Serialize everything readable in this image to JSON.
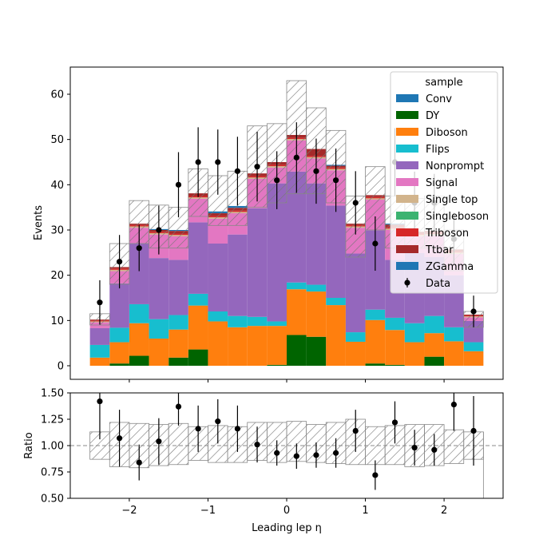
{
  "chart_data": [
    {
      "type": "bar",
      "panel": "main",
      "ylabel": "Events",
      "xlim": [
        -2.75,
        2.75
      ],
      "ylim": [
        -3,
        66
      ],
      "yticks": [
        0,
        10,
        20,
        30,
        40,
        50,
        60
      ],
      "legend_title": "sample",
      "legend_position": "top-right",
      "bin_edges": [
        -2.5,
        -2.25,
        -2.0,
        -1.75,
        -1.5,
        -1.25,
        -1.0,
        -0.75,
        -0.5,
        -0.25,
        0.0,
        0.25,
        0.5,
        0.75,
        1.0,
        1.25,
        1.5,
        1.75,
        2.0,
        2.25,
        2.5
      ],
      "stack": [
        {
          "name": "Conv",
          "color": "#1f77b4",
          "values": [
            0,
            0,
            0,
            0,
            0,
            0,
            0,
            0,
            0,
            0,
            0,
            0,
            0,
            0,
            0,
            0,
            0,
            0,
            0,
            0
          ]
        },
        {
          "name": "DY",
          "color": "#006400",
          "values": [
            0,
            0.5,
            2.2,
            0,
            1.8,
            3.6,
            0,
            0,
            0,
            0.2,
            6.8,
            6.4,
            0,
            0,
            0.5,
            0.2,
            0,
            2.0,
            0,
            0
          ]
        },
        {
          "name": "Diboson",
          "color": "#ff7f0e",
          "values": [
            1.8,
            4.7,
            7.2,
            6.0,
            6.2,
            9.7,
            9.8,
            8.5,
            8.8,
            8.6,
            10.1,
            10.0,
            13.4,
            5.3,
            9.6,
            7.7,
            5.2,
            5.2,
            5.4,
            3.2
          ]
        },
        {
          "name": "Flips",
          "color": "#17becf",
          "values": [
            2.8,
            3.2,
            4.2,
            4.3,
            3.2,
            2.6,
            2.2,
            2.5,
            2.0,
            1.0,
            1.5,
            1.5,
            1.6,
            2.1,
            2.3,
            2.7,
            4.2,
            3.8,
            3.1,
            2.0
          ]
        },
        {
          "name": "Nonprompt",
          "color": "#9467bd",
          "values": [
            3.7,
            9.8,
            13.5,
            13.5,
            12.2,
            15.8,
            15.0,
            18.0,
            24.0,
            30.5,
            24.5,
            22.4,
            20.4,
            17.4,
            17.5,
            12.8,
            15.5,
            13.0,
            11.5,
            4.7
          ]
        },
        {
          "name": "Signal",
          "color": "#e377c2",
          "values": [
            1.3,
            2.7,
            3.4,
            5.2,
            5.2,
            5.2,
            5.5,
            4.7,
            6.5,
            3.5,
            6.9,
            5.5,
            7.8,
            5.7,
            6.8,
            6.6,
            3.7,
            4.8,
            4.7,
            0.8
          ]
        },
        {
          "name": "Single top",
          "color": "#d2b48c",
          "values": [
            0.2,
            0.3,
            0.3,
            0.3,
            0.3,
            0.3,
            0.3,
            0.3,
            0.3,
            0.3,
            0.3,
            0.3,
            0.3,
            0.3,
            0.3,
            0.3,
            0.3,
            0.3,
            0.3,
            0.2
          ]
        },
        {
          "name": "Singleboson",
          "color": "#3cb371",
          "values": [
            0,
            0,
            0,
            0,
            0,
            0,
            0,
            0,
            0,
            0,
            0,
            0,
            0,
            0,
            0,
            0,
            0,
            0,
            0,
            0
          ]
        },
        {
          "name": "Triboson",
          "color": "#d62728",
          "values": [
            0.2,
            0.3,
            0.3,
            0.3,
            0.3,
            0.3,
            0.3,
            0.3,
            0.3,
            0.3,
            0.3,
            0.3,
            0.3,
            0.3,
            0.3,
            0.3,
            0.3,
            0.3,
            0.3,
            0.2
          ]
        },
        {
          "name": "Ttbar",
          "color": "#a52a2a",
          "values": [
            0.2,
            0.3,
            0.3,
            0.4,
            0.6,
            0.6,
            0.6,
            0.6,
            0.6,
            0.6,
            0.6,
            1.5,
            0.4,
            0.3,
            0.4,
            0.6,
            0.4,
            0.4,
            0.4,
            0.2
          ]
        },
        {
          "name": "ZGamma",
          "color": "#1f77b4",
          "values": [
            0,
            0,
            0,
            0.2,
            0.2,
            0,
            0.4,
            0.4,
            0,
            0,
            0,
            0,
            0.2,
            0,
            0,
            0.2,
            0,
            0,
            0,
            0
          ]
        }
      ],
      "uncertainty_band": {
        "low": [
          9.0,
          18.0,
          27.0,
          26.0,
          26.0,
          33.0,
          31.0,
          31.0,
          35.0,
          36.0,
          38.0,
          38.0,
          36.0,
          24.0,
          30.0,
          26.0,
          26.0,
          26.0,
          21.0,
          8.5
        ],
        "high": [
          11.5,
          27.0,
          36.5,
          35.5,
          35.0,
          43.5,
          42.0,
          43.0,
          53.0,
          53.5,
          63.0,
          57.0,
          52.0,
          37.5,
          44.0,
          37.5,
          37.0,
          37.5,
          30.0,
          12.0
        ]
      },
      "data_points": {
        "name": "Data",
        "x": [
          -2.375,
          -2.125,
          -1.875,
          -1.625,
          -1.375,
          -1.125,
          -0.875,
          -0.625,
          -0.375,
          -0.125,
          0.125,
          0.375,
          0.625,
          0.875,
          1.125,
          1.375,
          1.625,
          1.875,
          2.125,
          2.375
        ],
        "y": [
          14,
          23,
          26,
          30,
          40,
          45,
          45,
          43,
          44,
          41,
          46,
          43,
          41,
          36,
          27,
          45,
          36,
          36,
          28,
          12
        ],
        "err": [
          4.9,
          5.9,
          5.1,
          5.4,
          7.2,
          7.7,
          7.2,
          7.6,
          7.7,
          6.4,
          7.8,
          7.2,
          7.0,
          7.0,
          6.0,
          7.5,
          6.9,
          6.4,
          5.8,
          3.5
        ]
      }
    },
    {
      "type": "scatter",
      "panel": "ratio",
      "xlabel": "Leading lep η",
      "ylabel": "Ratio",
      "xlim": [
        -2.75,
        2.75
      ],
      "ylim": [
        0.5,
        1.5
      ],
      "xticks": [
        -2,
        -1,
        0,
        1,
        2
      ],
      "yticks": [
        0.5,
        0.75,
        1.0,
        1.25,
        1.5
      ],
      "reference_line": 1.0,
      "uncertainty_band": {
        "low": [
          0.87,
          0.8,
          0.79,
          0.81,
          0.82,
          0.86,
          0.84,
          0.84,
          0.86,
          0.84,
          0.85,
          0.84,
          0.83,
          0.82,
          0.82,
          0.82,
          0.8,
          0.81,
          0.83,
          0.87
        ],
        "high": [
          1.13,
          1.22,
          1.21,
          1.2,
          1.21,
          1.18,
          1.19,
          1.18,
          1.22,
          1.22,
          1.23,
          1.2,
          1.22,
          1.25,
          1.18,
          1.19,
          1.2,
          1.2,
          1.15,
          1.13
        ]
      },
      "points": {
        "x": [
          -2.375,
          -2.125,
          -1.875,
          -1.625,
          -1.375,
          -1.125,
          -0.875,
          -0.625,
          -0.375,
          -0.125,
          0.125,
          0.375,
          0.625,
          0.875,
          1.125,
          1.375,
          1.625,
          1.875,
          2.125,
          2.375
        ],
        "y": [
          1.42,
          1.07,
          0.84,
          1.04,
          1.37,
          1.16,
          1.23,
          1.16,
          1.01,
          0.93,
          0.9,
          0.91,
          0.93,
          1.14,
          0.72,
          1.22,
          0.98,
          0.96,
          1.39,
          1.14
        ],
        "err": [
          0.36,
          0.27,
          0.17,
          0.22,
          0.18,
          0.22,
          0.21,
          0.22,
          0.17,
          0.12,
          0.12,
          0.12,
          0.14,
          0.2,
          0.14,
          0.2,
          0.17,
          0.15,
          0.25,
          0.33
        ]
      }
    }
  ]
}
